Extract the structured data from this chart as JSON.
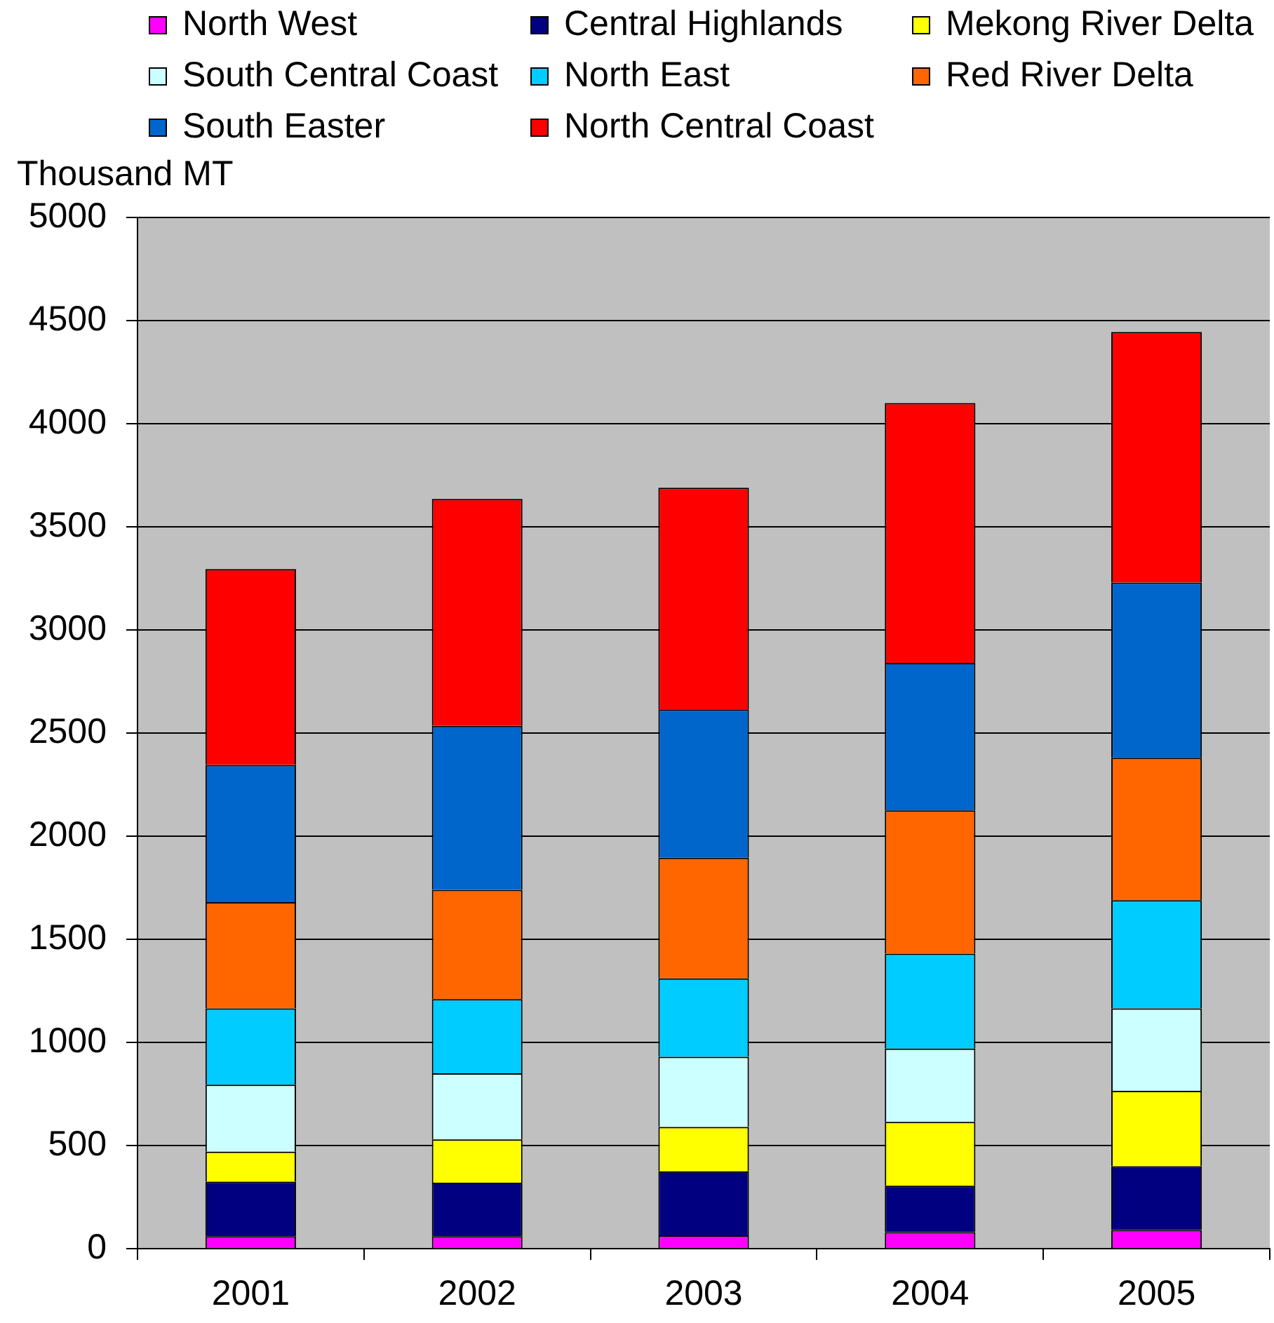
{
  "chart_data": {
    "type": "bar",
    "stacked": true,
    "ylabel": "Thousand MT",
    "categories": [
      "2001",
      "2002",
      "2003",
      "2004",
      "2005"
    ],
    "series": [
      {
        "name": "North West",
        "color": "#ff00ff",
        "values": [
          60,
          60,
          65,
          80,
          90
        ]
      },
      {
        "name": "Central Highlands",
        "color": "#000080",
        "values": [
          265,
          260,
          310,
          225,
          310
        ]
      },
      {
        "name": "Mekong River Delta",
        "color": "#ffff00",
        "values": [
          145,
          210,
          215,
          310,
          365
        ]
      },
      {
        "name": "South Central Coast",
        "color": "#ccffff",
        "values": [
          325,
          320,
          340,
          355,
          400
        ]
      },
      {
        "name": "North East",
        "color": "#00ccff",
        "values": [
          370,
          360,
          380,
          460,
          525
        ]
      },
      {
        "name": "Red River Delta",
        "color": "#ff6600",
        "values": [
          515,
          530,
          585,
          695,
          690
        ]
      },
      {
        "name": "South Easter",
        "color": "#0066cc",
        "values": [
          665,
          795,
          720,
          715,
          850
        ]
      },
      {
        "name": "North Central Coast",
        "color": "#ff0000",
        "values": [
          950,
          1100,
          1075,
          1260,
          1215
        ]
      }
    ],
    "ylim": [
      0,
      5000
    ],
    "yticks": [
      0,
      500,
      1000,
      1500,
      2000,
      2500,
      3000,
      3500,
      4000,
      4500,
      5000
    ],
    "grid": "y",
    "legend": "top"
  }
}
